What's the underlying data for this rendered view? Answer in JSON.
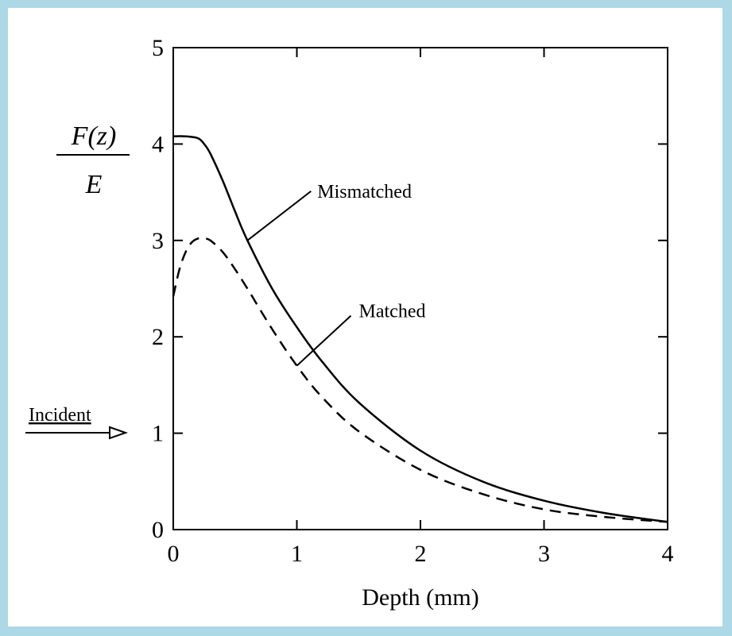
{
  "chart_data": {
    "type": "line",
    "xlabel": "Depth (mm)",
    "ylabel": {
      "numerator": "F(z)",
      "denominator": "E"
    },
    "xlim": [
      0,
      4
    ],
    "ylim": [
      0,
      5
    ],
    "xticks": [
      0,
      1,
      2,
      3,
      4
    ],
    "yticks": [
      0,
      1,
      2,
      3,
      4,
      5
    ],
    "grid": false,
    "series": [
      {
        "name": "Mismatched",
        "style": "solid",
        "color": "#000000",
        "x": [
          0,
          0.1,
          0.2,
          0.25,
          0.3,
          0.4,
          0.5,
          0.6,
          0.8,
          1.0,
          1.2,
          1.5,
          2.0,
          2.5,
          3.0,
          3.5,
          4.0
        ],
        "y": [
          4.08,
          4.08,
          4.06,
          4.0,
          3.9,
          3.62,
          3.3,
          3.0,
          2.5,
          2.1,
          1.75,
          1.32,
          0.82,
          0.5,
          0.3,
          0.17,
          0.08
        ]
      },
      {
        "name": "Matched",
        "style": "dashed",
        "color": "#000000",
        "x": [
          0,
          0.05,
          0.1,
          0.15,
          0.2,
          0.25,
          0.3,
          0.4,
          0.5,
          0.6,
          0.8,
          1.0,
          1.2,
          1.5,
          2.0,
          2.5,
          3.0,
          3.5,
          4.0
        ],
        "y": [
          2.42,
          2.7,
          2.88,
          2.98,
          3.02,
          3.02,
          3.0,
          2.88,
          2.7,
          2.5,
          2.08,
          1.7,
          1.38,
          1.02,
          0.62,
          0.37,
          0.21,
          0.13,
          0.08
        ]
      }
    ],
    "annotations": [
      {
        "text": "Mismatched",
        "series": "Mismatched",
        "x": 0.6,
        "y": 3.0
      },
      {
        "text": "Matched",
        "series": "Matched",
        "x": 1.0,
        "y": 1.7
      },
      {
        "text": "Incident",
        "x": 0,
        "y": 1.0
      }
    ]
  }
}
